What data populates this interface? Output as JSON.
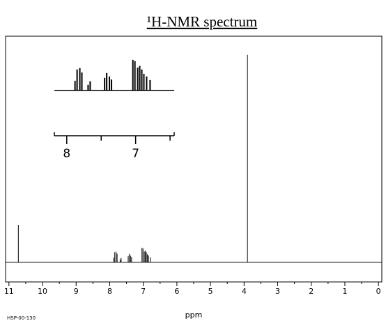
{
  "chart_data": {
    "type": "spectrum",
    "title": "¹H-NMR spectrum",
    "xlabel": "ppm",
    "code": "HSP-00-130",
    "xlim": [
      11.1,
      -0.1
    ],
    "ylim": [
      -9.5,
      109
    ],
    "xticks": [
      11,
      10,
      9,
      8,
      7,
      6,
      5,
      4,
      3,
      2,
      1,
      0
    ],
    "minor_xticks": [
      10.5,
      9.5,
      8.5,
      7.5,
      6.5,
      5.5,
      4.5,
      3.5,
      2.5,
      1.5,
      0.5
    ],
    "color": "#000000",
    "x": [
      10.72,
      7.88,
      7.85,
      7.81,
      7.78,
      7.69,
      7.66,
      7.45,
      7.42,
      7.38,
      7.35,
      7.04,
      7.01,
      6.97,
      6.94,
      6.91,
      6.88,
      6.84,
      6.79,
      3.9
    ],
    "values": [
      18,
      2.2,
      4.8,
      5.1,
      4.1,
      1.3,
      2.1,
      2.9,
      4.0,
      3.2,
      2.5,
      7.0,
      6.7,
      5.2,
      5.6,
      4.8,
      3.8,
      3.2,
      2.4,
      100
    ],
    "inset": {
      "xlim": [
        8.18,
        6.44
      ],
      "xticks": [
        8,
        7
      ],
      "minor_xticks": [
        7.5,
        6.5
      ]
    }
  }
}
